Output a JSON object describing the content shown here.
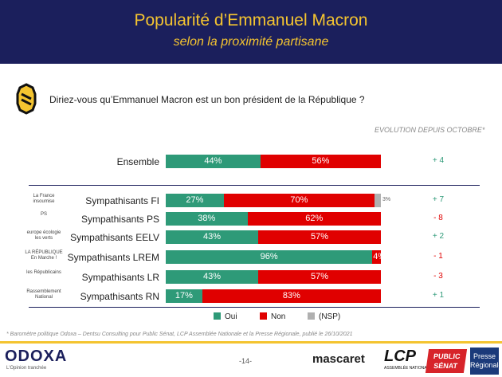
{
  "header": {
    "title": "Popularité d’Emmanuel Macron",
    "subtitle": "selon la proximité partisane"
  },
  "question": "Diriez-vous qu’Emmanuel Macron est un bon président de la République ?",
  "evolution_header": "EVOLUTION DEPUIS OCTOBRE*",
  "colors": {
    "oui": "#2e9a78",
    "non": "#e00000",
    "nsp": "#b0b0b0",
    "navy": "#1b1f5c",
    "gold": "#f4c430"
  },
  "chart_data": {
    "type": "bar",
    "orientation": "horizontal",
    "stacked": true,
    "categories": [
      "Ensemble",
      "Sympathisants FI",
      "Sympathisants PS",
      "Sympathisants EELV",
      "Sympathisants LREM",
      "Sympathisants LR",
      "Sympathisants RN"
    ],
    "series": [
      {
        "name": "Oui",
        "values": [
          44,
          27,
          38,
          43,
          96,
          43,
          17
        ]
      },
      {
        "name": "Non",
        "values": [
          56,
          70,
          62,
          57,
          4,
          57,
          83
        ]
      },
      {
        "name": "(NSP)",
        "values": [
          0,
          3,
          0,
          0,
          0,
          0,
          0
        ]
      }
    ],
    "labels": [
      [
        "44%",
        "56%",
        ""
      ],
      [
        "27%",
        "70%",
        "3%"
      ],
      [
        "38%",
        "62%",
        ""
      ],
      [
        "43%",
        "57%",
        ""
      ],
      [
        "96%",
        "4%",
        ""
      ],
      [
        "43%",
        "57%",
        ""
      ],
      [
        "17%",
        "83%",
        ""
      ]
    ],
    "evolution": [
      "+ 4",
      "+ 7",
      "- 8",
      "+ 2",
      "- 1",
      "- 3",
      "+ 1"
    ],
    "legend": [
      "Oui",
      "Non",
      "(NSP)"
    ],
    "legend_position": "bottom"
  },
  "party_logos": [
    {
      "name": "la-france-insoumise-logo",
      "text": "La France insoumise"
    },
    {
      "name": "ps-logo",
      "text": "PS"
    },
    {
      "name": "eelv-logo",
      "text": "europe écologie les verts"
    },
    {
      "name": "lrem-logo",
      "text": "LA RÉPUBLIQUE En Marche !"
    },
    {
      "name": "lr-logo",
      "text": "les Républicains"
    },
    {
      "name": "rn-logo",
      "text": "Rassemblement National"
    }
  ],
  "footnote": "* Baromètre politique Odoxa – Dentsu Consulting pour Public Sénat, LCP Assemblée Nationale et la Presse Régionale, publié le 26/10/2021",
  "footer": {
    "odoxa": "ODOXA",
    "odoxa_tagline": "L'Opinion tranchée",
    "page": "-14-",
    "mascaret": "mascaret",
    "lcp": "LCP",
    "lcp_sub": "ASSEMBLÉE NATIONALE",
    "public_senat": "PUBLIC SÉNAT",
    "presse_regionale": "Presse Régionale"
  }
}
